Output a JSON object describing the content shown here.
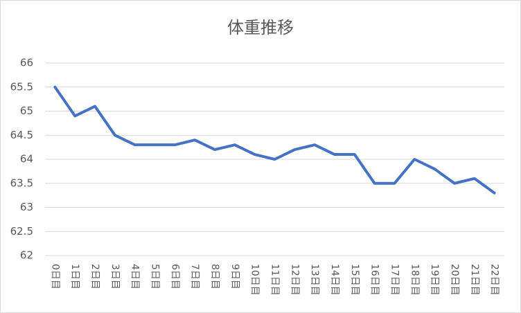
{
  "chart_data": {
    "type": "line",
    "title": "体重推移",
    "categories": [
      "0日目",
      "1日目",
      "2日目",
      "3日目",
      "4日目",
      "5日目",
      "6日目",
      "7日目",
      "8日目",
      "9日目",
      "10日目",
      "11日目",
      "12日目",
      "13日目",
      "14日目",
      "15日目",
      "16日目",
      "17日目",
      "18日目",
      "19日目",
      "20日目",
      "21日目",
      "22日目"
    ],
    "series": [
      {
        "color": "#4472c4",
        "values": [
          65.5,
          64.9,
          65.1,
          64.5,
          64.3,
          64.3,
          64.3,
          64.4,
          64.2,
          64.3,
          64.1,
          64.0,
          64.2,
          64.3,
          64.1,
          64.1,
          63.5,
          63.5,
          64.0,
          63.8,
          63.5,
          63.6,
          63.3
        ]
      }
    ],
    "ylim": [
      62,
      66
    ],
    "yticks": [
      62,
      62.5,
      63,
      63.5,
      64,
      64.5,
      65,
      65.5,
      66
    ],
    "grid": true
  }
}
